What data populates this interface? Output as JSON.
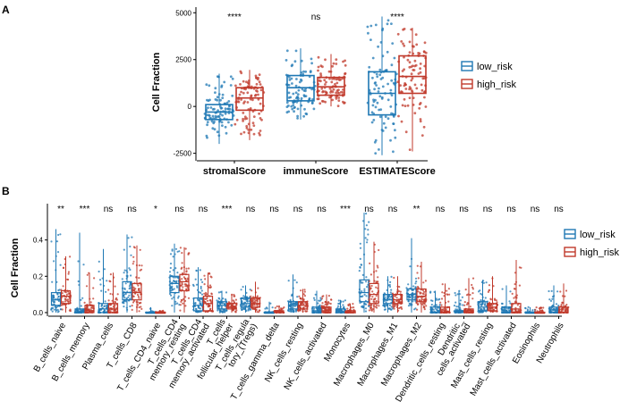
{
  "colors": {
    "low": "#1f78b4",
    "high": "#c0392b",
    "axis": "#000000"
  },
  "chart_data": [
    {
      "panel": "A",
      "type": "box",
      "ylabel": "Cell Fraction",
      "ylim": [
        -2900,
        5300
      ],
      "yticks": [
        -2500,
        0,
        2500,
        5000
      ],
      "categories": [
        "stromalScore",
        "immuneScore",
        "ESTIMATEScore"
      ],
      "significance": [
        "****",
        "ns",
        "****"
      ],
      "legend": {
        "position": "right",
        "entries": [
          "low_risk",
          "high_risk"
        ]
      },
      "series": [
        {
          "name": "low_risk",
          "stats": [
            {
              "min": -2000,
              "q1": -700,
              "median": -300,
              "q3": 100,
              "max": 1750
            },
            {
              "min": -700,
              "q1": 300,
              "median": 1000,
              "q3": 1650,
              "max": 3100
            },
            {
              "min": -2600,
              "q1": -450,
              "median": 700,
              "q3": 1850,
              "max": 4800
            }
          ]
        },
        {
          "name": "high_risk",
          "stats": [
            {
              "min": -1800,
              "q1": -200,
              "median": 450,
              "q3": 1000,
              "max": 1950
            },
            {
              "min": 0,
              "q1": 600,
              "median": 1050,
              "q3": 1550,
              "max": 2800
            },
            {
              "min": -2400,
              "q1": 700,
              "median": 1600,
              "q3": 2700,
              "max": 4200
            }
          ]
        }
      ]
    },
    {
      "panel": "B",
      "type": "box",
      "ylabel": "Cell Fraction",
      "ylim": [
        -0.02,
        0.6
      ],
      "yticks": [
        0.0,
        0.2,
        0.4
      ],
      "categories": [
        "B_cells_naive",
        "B_cells_memory",
        "Plasma_cells",
        "T_cells_CD8",
        "T_cells_CD4_naive",
        "T_cells_CD4_memory_resting",
        "T_cells_CD4_memory_activated",
        "T_cells_follicular_helper",
        "T_cells_regulatory_(Tregs)",
        "T_cells_gamma_delta",
        "NK_cells_resting",
        "NK_cells_activated",
        "Monocytes",
        "Macrophages_M0",
        "Macrophages_M1",
        "Macrophages_M2",
        "Dendritic_cells_resting",
        "Dendritic_cells_activated",
        "Mast_cells_resting",
        "Mast_cells_activated",
        "Eosinophils",
        "Neutrophils"
      ],
      "tick_labels": [
        [
          "B_cells_naive"
        ],
        [
          "B_cells_memory"
        ],
        [
          "Plasma_cells"
        ],
        [
          "T_cells_CD8"
        ],
        [
          "T_cells_CD4_naive"
        ],
        [
          "T_cells_CD4",
          "memory_resting"
        ],
        [
          "T_cells_CD4",
          "memory_activated"
        ],
        [
          "T_cells",
          "follicular_helper"
        ],
        [
          "T_cells_regula",
          "tory_(Tregs)"
        ],
        [
          "T_cells_gamma_delta"
        ],
        [
          "NK_cells_resting"
        ],
        [
          "NK_cells_activated"
        ],
        [
          "Monocytes"
        ],
        [
          "Macrophages_M0"
        ],
        [
          "Macrophages_M1"
        ],
        [
          "Macrophages_M2"
        ],
        [
          "Dendritic_cells_resting"
        ],
        [
          "Dendritic_",
          "cells_activated"
        ],
        [
          "Mast_cells_resting"
        ],
        [
          "Mast_cells_activated"
        ],
        [
          "Eosinophils"
        ],
        [
          "Neutrophils"
        ]
      ],
      "significance": [
        "**",
        "***",
        "ns",
        "ns",
        "*",
        "ns",
        "ns",
        "***",
        "ns",
        "ns",
        "ns",
        "ns",
        "***",
        "ns",
        "ns",
        "**",
        "ns",
        "ns",
        "ns",
        "ns",
        "ns",
        "ns"
      ],
      "legend": {
        "position": "right",
        "entries": [
          "low_risk",
          "high_risk"
        ]
      },
      "series": [
        {
          "name": "low_risk",
          "stats": [
            {
              "min": 0,
              "q1": 0.04,
              "median": 0.07,
              "q3": 0.11,
              "max": 0.46
            },
            {
              "min": 0,
              "q1": 0,
              "median": 0,
              "q3": 0.02,
              "max": 0.44
            },
            {
              "min": 0,
              "q1": 0,
              "median": 0.02,
              "q3": 0.05,
              "max": 0.35
            },
            {
              "min": 0,
              "q1": 0.07,
              "median": 0.11,
              "q3": 0.17,
              "max": 0.43
            },
            {
              "min": 0,
              "q1": 0,
              "median": 0,
              "q3": 0,
              "max": 0.03
            },
            {
              "min": 0,
              "q1": 0.11,
              "median": 0.16,
              "q3": 0.2,
              "max": 0.38
            },
            {
              "min": 0,
              "q1": 0.01,
              "median": 0.04,
              "q3": 0.08,
              "max": 0.25
            },
            {
              "min": 0,
              "q1": 0.02,
              "median": 0.04,
              "q3": 0.06,
              "max": 0.12
            },
            {
              "min": 0,
              "q1": 0.03,
              "median": 0.05,
              "q3": 0.08,
              "max": 0.15
            },
            {
              "min": 0,
              "q1": 0,
              "median": 0,
              "q3": 0,
              "max": 0.06
            },
            {
              "min": 0,
              "q1": 0.02,
              "median": 0.04,
              "q3": 0.06,
              "max": 0.21
            },
            {
              "min": 0,
              "q1": 0,
              "median": 0.01,
              "q3": 0.03,
              "max": 0.12
            },
            {
              "min": 0,
              "q1": 0,
              "median": 0,
              "q3": 0.02,
              "max": 0.07
            },
            {
              "min": 0,
              "q1": 0.06,
              "median": 0.11,
              "q3": 0.18,
              "max": 0.55
            },
            {
              "min": 0,
              "q1": 0.05,
              "median": 0.07,
              "q3": 0.1,
              "max": 0.2
            },
            {
              "min": 0,
              "q1": 0.07,
              "median": 0.1,
              "q3": 0.13,
              "max": 0.41
            },
            {
              "min": 0,
              "q1": 0,
              "median": 0,
              "q3": 0.03,
              "max": 0.12
            },
            {
              "min": 0,
              "q1": 0,
              "median": 0,
              "q3": 0.01,
              "max": 0.12
            },
            {
              "min": 0,
              "q1": 0.01,
              "median": 0.03,
              "q3": 0.06,
              "max": 0.18
            },
            {
              "min": 0,
              "q1": 0,
              "median": 0,
              "q3": 0.03,
              "max": 0.15
            },
            {
              "min": 0,
              "q1": 0,
              "median": 0,
              "q3": 0,
              "max": 0.03
            },
            {
              "min": 0,
              "q1": 0,
              "median": 0,
              "q3": 0.03,
              "max": 0.15
            }
          ]
        },
        {
          "name": "high_risk",
          "stats": [
            {
              "min": 0,
              "q1": 0.05,
              "median": 0.09,
              "q3": 0.12,
              "max": 0.31
            },
            {
              "min": 0,
              "q1": 0,
              "median": 0.01,
              "q3": 0.04,
              "max": 0.22
            },
            {
              "min": 0,
              "q1": 0,
              "median": 0.02,
              "q3": 0.05,
              "max": 0.22
            },
            {
              "min": 0,
              "q1": 0.07,
              "median": 0.11,
              "q3": 0.16,
              "max": 0.37
            },
            {
              "min": 0,
              "q1": 0,
              "median": 0,
              "q3": 0,
              "max": 0.01
            },
            {
              "min": 0,
              "q1": 0.12,
              "median": 0.17,
              "q3": 0.21,
              "max": 0.36
            },
            {
              "min": 0,
              "q1": 0.01,
              "median": 0.05,
              "q3": 0.09,
              "max": 0.22
            },
            {
              "min": 0,
              "q1": 0.02,
              "median": 0.03,
              "q3": 0.05,
              "max": 0.1
            },
            {
              "min": 0,
              "q1": 0.03,
              "median": 0.05,
              "q3": 0.08,
              "max": 0.17
            },
            {
              "min": 0,
              "q1": 0,
              "median": 0,
              "q3": 0.01,
              "max": 0.04
            },
            {
              "min": 0,
              "q1": 0.02,
              "median": 0.04,
              "q3": 0.06,
              "max": 0.13
            },
            {
              "min": 0,
              "q1": 0,
              "median": 0.01,
              "q3": 0.03,
              "max": 0.1
            },
            {
              "min": 0,
              "q1": 0,
              "median": 0,
              "q3": 0.01,
              "max": 0.05
            },
            {
              "min": 0,
              "q1": 0.05,
              "median": 0.1,
              "q3": 0.16,
              "max": 0.39
            },
            {
              "min": 0,
              "q1": 0.05,
              "median": 0.07,
              "q3": 0.1,
              "max": 0.2
            },
            {
              "min": 0,
              "q1": 0.06,
              "median": 0.09,
              "q3": 0.13,
              "max": 0.28
            },
            {
              "min": 0,
              "q1": 0,
              "median": 0,
              "q3": 0.03,
              "max": 0.16
            },
            {
              "min": 0,
              "q1": 0,
              "median": 0.01,
              "q3": 0.02,
              "max": 0.19
            },
            {
              "min": 0,
              "q1": 0.01,
              "median": 0.03,
              "q3": 0.05,
              "max": 0.2
            },
            {
              "min": 0,
              "q1": 0,
              "median": 0.02,
              "q3": 0.05,
              "max": 0.29
            },
            {
              "min": 0,
              "q1": 0,
              "median": 0,
              "q3": 0,
              "max": 0.03
            },
            {
              "min": 0,
              "q1": 0,
              "median": 0,
              "q3": 0.03,
              "max": 0.16
            }
          ]
        }
      ]
    }
  ]
}
